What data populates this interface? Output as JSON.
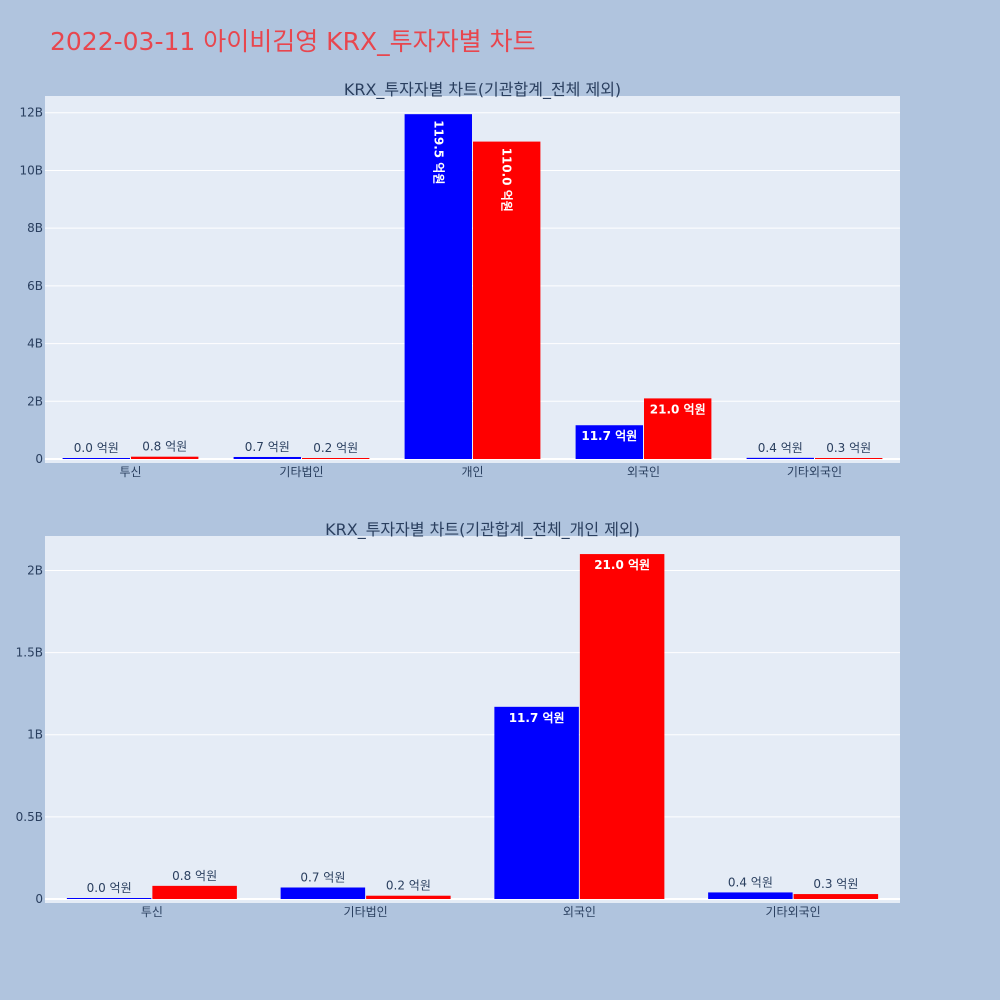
{
  "page_title": "2022-03-11 아이비김영 KRX_투자자별 차트",
  "colors": {
    "background": "#b0c4de",
    "plot_bg": "#e5ecf6",
    "series_a": "#0000ff",
    "series_b": "#ff0000",
    "title": "#e8464e",
    "text": "#2a3f5f"
  },
  "chart_data": [
    {
      "type": "bar",
      "title": "KRX_투자자별 차트(기관합계_전체 제외)",
      "categories": [
        "투신",
        "기타법인",
        "개인",
        "외국인",
        "기타외국인"
      ],
      "series": [
        {
          "values": [
            1000000,
            70000000,
            11950000000,
            1170000000,
            40000000
          ],
          "labels": [
            "0.0 억원",
            "0.7 억원",
            "119.5 억원",
            "11.7 억원",
            "0.4 억원"
          ]
        },
        {
          "values": [
            80000000,
            20000000,
            11000000000,
            2100000000,
            30000000
          ],
          "labels": [
            "0.8 억원",
            "0.2 억원",
            "110.0 억원",
            "21.0 억원",
            "0.3 억원"
          ]
        }
      ],
      "ylim": [
        0,
        12580000000
      ],
      "yticks": [
        0,
        2000000000,
        4000000000,
        6000000000,
        8000000000,
        10000000000,
        12000000000
      ],
      "ytick_labels": [
        "0",
        "2B",
        "4B",
        "6B",
        "8B",
        "10B",
        "12B"
      ],
      "grid": true
    },
    {
      "type": "bar",
      "title": "KRX_투자자별 차트(기관합계_전체_개인 제외)",
      "categories": [
        "투신",
        "기타법인",
        "외국인",
        "기타외국인"
      ],
      "series": [
        {
          "values": [
            1000000,
            70000000,
            1170000000,
            40000000
          ],
          "labels": [
            "0.0 억원",
            "0.7 억원",
            "11.7 억원",
            "0.4 억원"
          ]
        },
        {
          "values": [
            80000000,
            20000000,
            2100000000,
            30000000
          ],
          "labels": [
            "0.8 억원",
            "0.2 억원",
            "21.0 억원",
            "0.3 억원"
          ]
        }
      ],
      "ylim": [
        0,
        2210000000
      ],
      "yticks": [
        0,
        500000000,
        1000000000,
        1500000000,
        2000000000
      ],
      "ytick_labels": [
        "0",
        "0.5B",
        "1B",
        "1.5B",
        "2B"
      ],
      "grid": true
    }
  ]
}
